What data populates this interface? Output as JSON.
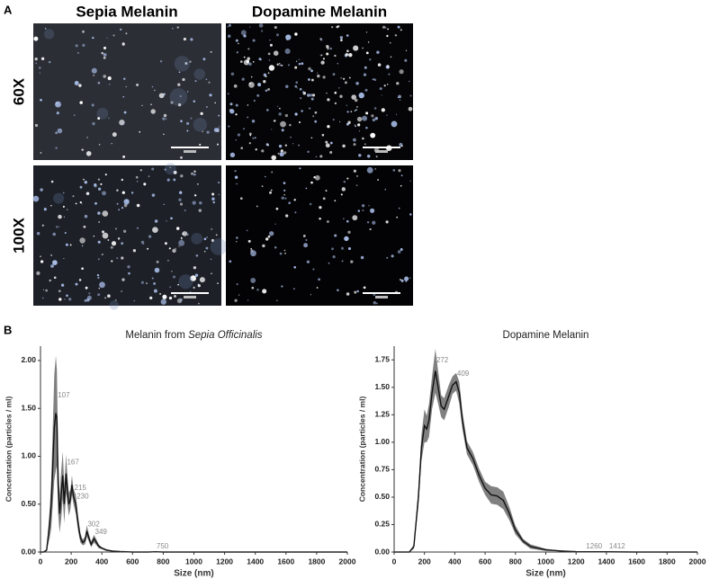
{
  "panel_a": {
    "label": "A",
    "columns": [
      "Sepia Melanin",
      "Dopamine Melanin"
    ],
    "rows": [
      "60X",
      "100X"
    ]
  },
  "panel_b": {
    "label": "B"
  },
  "chart_data": [
    {
      "type": "line",
      "title": "Melanin from",
      "title_species": "Sepia Officinalis",
      "x_label": "Size (nm)",
      "y_label": "Concentration (particles / ml)",
      "x": [
        0,
        20,
        40,
        60,
        70,
        80,
        90,
        100,
        107,
        115,
        125,
        135,
        145,
        155,
        167,
        175,
        185,
        195,
        205,
        215,
        230,
        245,
        260,
        275,
        290,
        302,
        315,
        330,
        349,
        365,
        380,
        400,
        430,
        470,
        520,
        600,
        700,
        750,
        800,
        1000,
        1200,
        1500,
        2000
      ],
      "values": [
        0,
        0,
        0.02,
        0.3,
        0.5,
        0.9,
        1.3,
        1.45,
        1.4,
        0.7,
        0.4,
        0.6,
        0.8,
        0.5,
        0.82,
        0.65,
        0.5,
        0.55,
        0.7,
        0.58,
        0.5,
        0.3,
        0.15,
        0.1,
        0.12,
        0.22,
        0.15,
        0.08,
        0.14,
        0.1,
        0.06,
        0.04,
        0.02,
        0.01,
        0.005,
        0,
        0,
        0.003,
        0,
        0,
        0,
        0,
        0
      ],
      "errors": [
        0,
        0,
        0.01,
        0.15,
        0.25,
        0.4,
        0.55,
        0.6,
        0.5,
        0.3,
        0.2,
        0.25,
        0.25,
        0.2,
        0.2,
        0.15,
        0.12,
        0.1,
        0.1,
        0.08,
        0.1,
        0.08,
        0.05,
        0.03,
        0.04,
        0.06,
        0.04,
        0.03,
        0.04,
        0.03,
        0.02,
        0.01,
        0.01,
        0,
        0,
        0,
        0,
        0,
        0,
        0,
        0,
        0,
        0
      ],
      "color": "#111111",
      "band_color": "#808080",
      "peaks": [
        107,
        167,
        215,
        230,
        302,
        349,
        750
      ],
      "xlim": [
        0,
        2000
      ],
      "xticks": [
        0,
        200,
        400,
        600,
        800,
        1000,
        1200,
        1400,
        1600,
        1800,
        2000
      ],
      "ylim": [
        0,
        2.15
      ],
      "yticks": [
        {
          "value": 0,
          "label": "0.00"
        },
        {
          "value": 0.5,
          "label": "0.50"
        },
        {
          "value": 1,
          "label": "1.00"
        },
        {
          "value": 1.5,
          "label": "1.50"
        },
        {
          "value": 2,
          "label": "2.00"
        }
      ]
    },
    {
      "type": "line",
      "title": "Dopamine Melanin",
      "x_label": "Size (nm)",
      "y_label": "Concentration (particles / ml)",
      "x": [
        0,
        50,
        100,
        130,
        160,
        180,
        200,
        215,
        230,
        250,
        272,
        290,
        310,
        330,
        360,
        385,
        409,
        430,
        450,
        480,
        520,
        560,
        600,
        640,
        680,
        720,
        760,
        800,
        850,
        900,
        1000,
        1100,
        1200,
        1260,
        1412,
        1600,
        2000
      ],
      "values": [
        0,
        0,
        0,
        0.05,
        0.5,
        0.95,
        1.15,
        1.12,
        1.2,
        1.45,
        1.65,
        1.5,
        1.33,
        1.3,
        1.42,
        1.52,
        1.55,
        1.45,
        1.2,
        0.95,
        0.85,
        0.7,
        0.58,
        0.52,
        0.51,
        0.47,
        0.35,
        0.2,
        0.1,
        0.05,
        0.02,
        0.01,
        0.003,
        0.002,
        0.002,
        0,
        0
      ],
      "errors": [
        0,
        0,
        0,
        0.02,
        0.08,
        0.12,
        0.15,
        0.12,
        0.15,
        0.15,
        0.2,
        0.15,
        0.1,
        0.1,
        0.1,
        0.08,
        0.08,
        0.1,
        0.08,
        0.06,
        0.06,
        0.06,
        0.06,
        0.08,
        0.08,
        0.08,
        0.06,
        0.04,
        0.02,
        0.02,
        0.01,
        0,
        0,
        0,
        0,
        0,
        0
      ],
      "color": "#111111",
      "band_color": "#808080",
      "peaks": [
        272,
        409,
        1260,
        1412
      ],
      "xlim": [
        0,
        2000
      ],
      "xticks": [
        0,
        200,
        400,
        600,
        800,
        1000,
        1200,
        1400,
        1600,
        1800,
        2000
      ],
      "ylim": [
        0,
        1.875
      ],
      "yticks": [
        {
          "value": 0,
          "label": "0.00"
        },
        {
          "value": 0.25,
          "label": "0.25"
        },
        {
          "value": 0.5,
          "label": "0.50"
        },
        {
          "value": 0.75,
          "label": "0.75"
        },
        {
          "value": 1,
          "label": "1.00"
        },
        {
          "value": 1.25,
          "label": "1.25"
        },
        {
          "value": 1.5,
          "label": "1.50"
        },
        {
          "value": 1.75,
          "label": "1.75"
        }
      ]
    }
  ]
}
